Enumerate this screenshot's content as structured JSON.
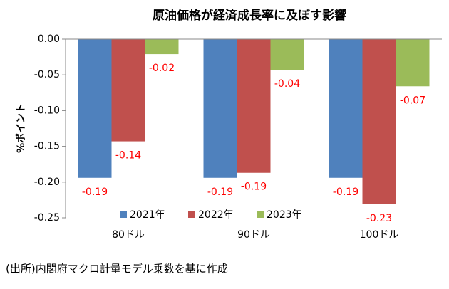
{
  "chart_data": {
    "type": "bar",
    "title": "原油価格が経済成長率に及ぼす影響",
    "y_label": "%ポイント",
    "categories": [
      "80ドル",
      "90ドル",
      "100ドル"
    ],
    "series": [
      {
        "name": "2021年",
        "color": "#4f81bd",
        "values": [
          -0.194,
          -0.194,
          -0.194
        ],
        "value_labels": [
          "-0.19",
          "-0.19",
          "-0.19"
        ]
      },
      {
        "name": "2022年",
        "color": "#c0504d",
        "values": [
          -0.143,
          -0.187,
          -0.231
        ],
        "value_labels": [
          "-0.14",
          "-0.19",
          "-0.23"
        ]
      },
      {
        "name": "2023年",
        "color": "#9bbb59",
        "values": [
          -0.021,
          -0.043,
          -0.066
        ],
        "value_labels": [
          "-0.02",
          "-0.04",
          "-0.07"
        ]
      }
    ],
    "value_label_color": "#ff0000",
    "ylim": [
      -0.25,
      0
    ],
    "yticks": [
      {
        "value": 0,
        "label": "0.00"
      },
      -0.05,
      {
        "value": -0.1,
        "label": "-0.10"
      },
      -0.15,
      {
        "value": -0.2,
        "label": "-0.20"
      },
      -0.25
    ],
    "legend": "bottom",
    "source": "(出所)内閣府マクロ計量モデル乗数を基に作成"
  }
}
